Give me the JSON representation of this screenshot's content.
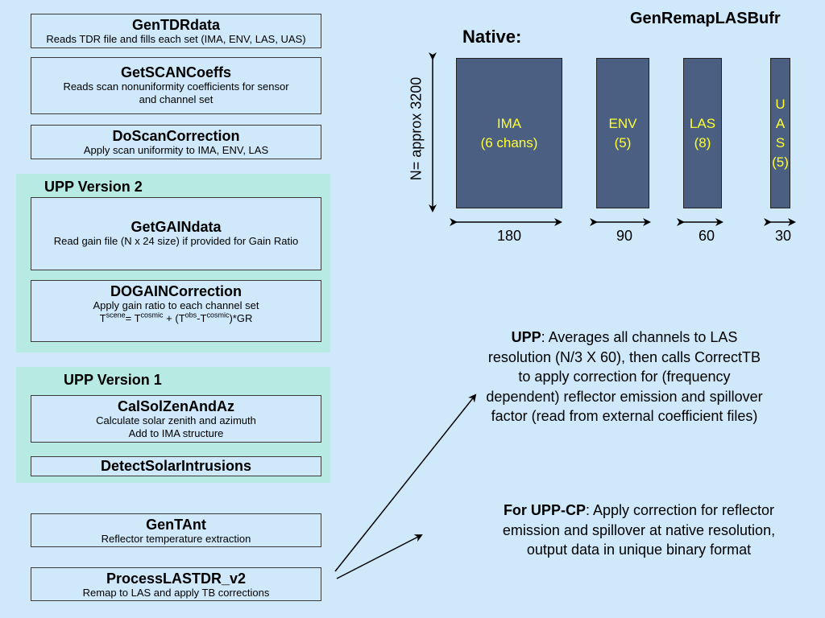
{
  "title": "GenRemapLASBufr",
  "native_label": "Native:",
  "vertical_label": "N= approx 3200",
  "steps": {
    "gentdrdata": {
      "title": "GenTDRdata",
      "desc": "Reads TDR file and fills each set (IMA, ENV, LAS, UAS)"
    },
    "getscancoeffs": {
      "title": "GetSCANCoeffs",
      "desc": "Reads scan nonuniformity coefficients for sensor and channel set"
    },
    "doscancorrection": {
      "title": "DoScanCorrection",
      "desc": "Apply scan uniformity to IMA, ENV, LAS"
    },
    "getgaindata": {
      "title": "GetGAINdata",
      "desc": "Read gain file (N x 24 size) if provided for Gain Ratio"
    },
    "dogaincorrection": {
      "title": "DOGAINCorrection",
      "desc": "Apply gain ratio to each channel set",
      "formula": {
        "t1": "T",
        "s1": "scene",
        "eq": "= T",
        "s2": "cosmic",
        "plus": " + (T",
        "s3": "obs",
        "minus": "-T",
        "s4": "cosmic",
        "end": ")*GR"
      }
    },
    "calsolzen": {
      "title": "CalSolZenAndAz",
      "desc1": "Calculate solar zenith and azimuth",
      "desc2": "Add to IMA structure"
    },
    "detectsolar": {
      "title": "DetectSolarIntrusions"
    },
    "gentant": {
      "title": "GenTAnt",
      "desc": "Reflector temperature extraction"
    },
    "processlas": {
      "title": "ProcessLASTDR_v2",
      "desc": "Remap to LAS and apply TB corrections"
    }
  },
  "groups": {
    "upp2": "UPP Version 2",
    "upp1": "UPP Version 1"
  },
  "bars": [
    {
      "name": "IMA",
      "sub": "(6 chans)",
      "width_label": "180"
    },
    {
      "name": "ENV",
      "sub": "(5)",
      "width_label": "90"
    },
    {
      "name": "LAS",
      "sub": "(8)",
      "width_label": "60"
    },
    {
      "name": "U A S",
      "sub": "(5)",
      "width_label": "30"
    }
  ],
  "uas_letters": [
    "U",
    "A",
    "S",
    "(5)"
  ],
  "notes": {
    "upp": {
      "bold": "UPP",
      "text": ": Averages all channels to LAS resolution (N/3 X 60), then calls CorrectTB to apply correction for (frequency dependent) reflector emission and spillover factor (read from external coefficient files)"
    },
    "uppcp": {
      "bold": "For UPP-CP",
      "text": ": Apply correction for reflector emission and spillover at native resolution, output data in unique binary format"
    }
  },
  "colors": {
    "background": "#cfe8fa",
    "group_fill": "#b6eae2",
    "bar_fill": "#4a5f82",
    "bar_text": "#ffff33"
  }
}
